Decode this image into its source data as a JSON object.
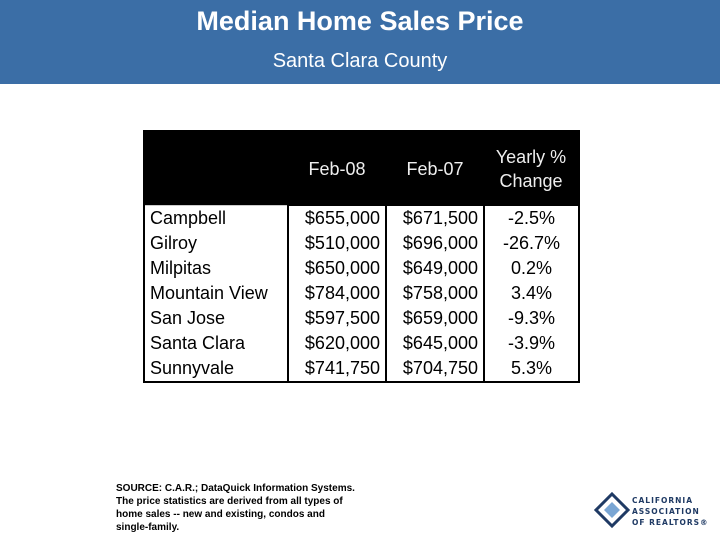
{
  "header": {
    "title": "Median Home Sales Price",
    "subtitle": "Santa Clara County"
  },
  "table": {
    "columns": [
      "Feb-08",
      "Feb-07",
      "Yearly % Change"
    ],
    "rows": [
      [
        "Campbell",
        "$655,000",
        "$671,500",
        "-2.5%"
      ],
      [
        "Gilroy",
        "$510,000",
        "$696,000",
        "-26.7%"
      ],
      [
        "Milpitas",
        "$650,000",
        "$649,000",
        "0.2%"
      ],
      [
        "Mountain View",
        "$784,000",
        "$758,000",
        "3.4%"
      ],
      [
        "San Jose",
        "$597,500",
        "$659,000",
        "-9.3%"
      ],
      [
        "Santa Clara",
        "$620,000",
        "$645,000",
        "-3.9%"
      ],
      [
        "Sunnyvale",
        "$741,750",
        "$704,750",
        "5.3%"
      ]
    ]
  },
  "source": "SOURCE: C.A.R.; DataQuick Information Systems. The price statistics are derived from all types of home sales -- new and existing, condos and single-family.",
  "logo": [
    "CALIFORNIA",
    "ASSOCIATION",
    "OF REALTORS®"
  ]
}
